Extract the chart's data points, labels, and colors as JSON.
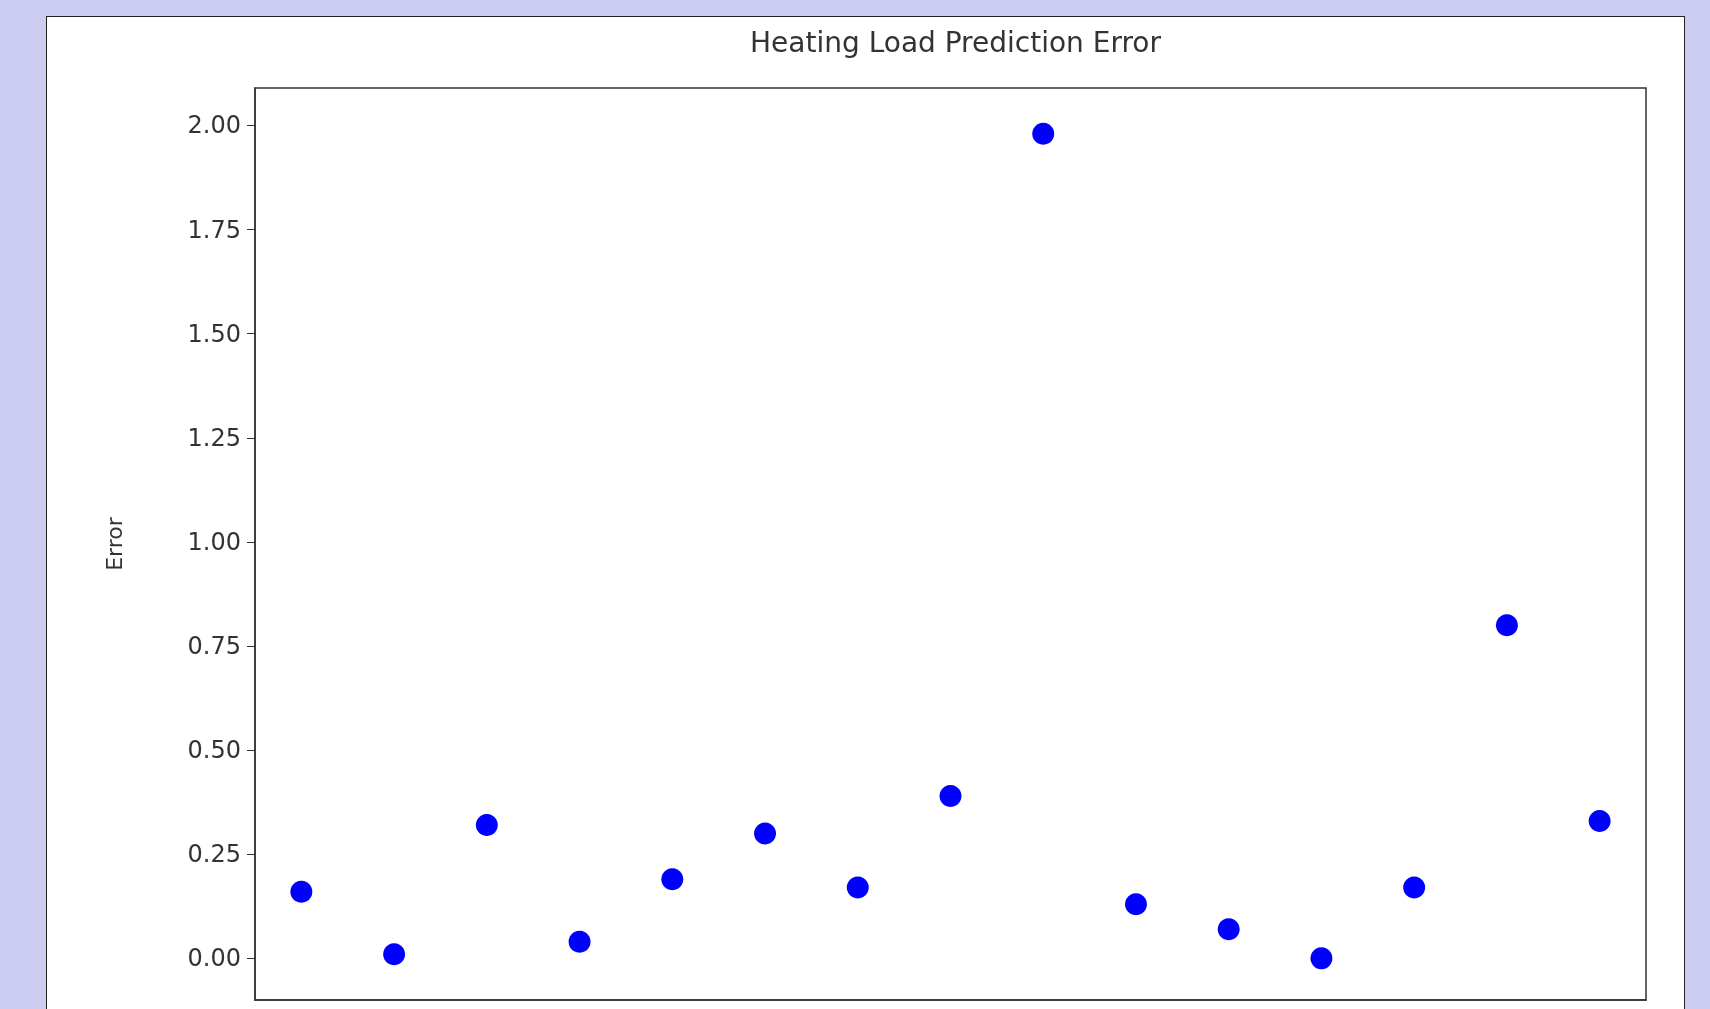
{
  "chart_data": {
    "type": "scatter",
    "title": "Heating Load Prediction Error",
    "ylabel": "Error",
    "categories": [
      null,
      null,
      null,
      null,
      null,
      null,
      null,
      null,
      null,
      null,
      null,
      null,
      null,
      null,
      null
    ],
    "series": [
      {
        "color": "#0000ff",
        "values": [
          0.16,
          0.01,
          0.32,
          0.04,
          0.19,
          0.3,
          0.17,
          0.39,
          1.98,
          0.13,
          0.07,
          0.0,
          0.17,
          0.8,
          0.33
        ]
      }
    ],
    "ylim": [
      -0.1,
      2.09
    ],
    "yticks": [
      {
        "value": 0,
        "label": "0.00"
      },
      {
        "value": 0.25,
        "label": "0.25"
      },
      {
        "value": 0.5,
        "label": "0.50"
      },
      {
        "value": 0.75,
        "label": "0.75"
      },
      {
        "value": 1,
        "label": "1.00"
      },
      {
        "value": 1.25,
        "label": "1.25"
      },
      {
        "value": 1.5,
        "label": "1.50"
      },
      {
        "value": 1.75,
        "label": "1.75"
      },
      {
        "value": 2,
        "label": "2.00"
      }
    ],
    "tick_labels": "y",
    "marker": "circle"
  }
}
